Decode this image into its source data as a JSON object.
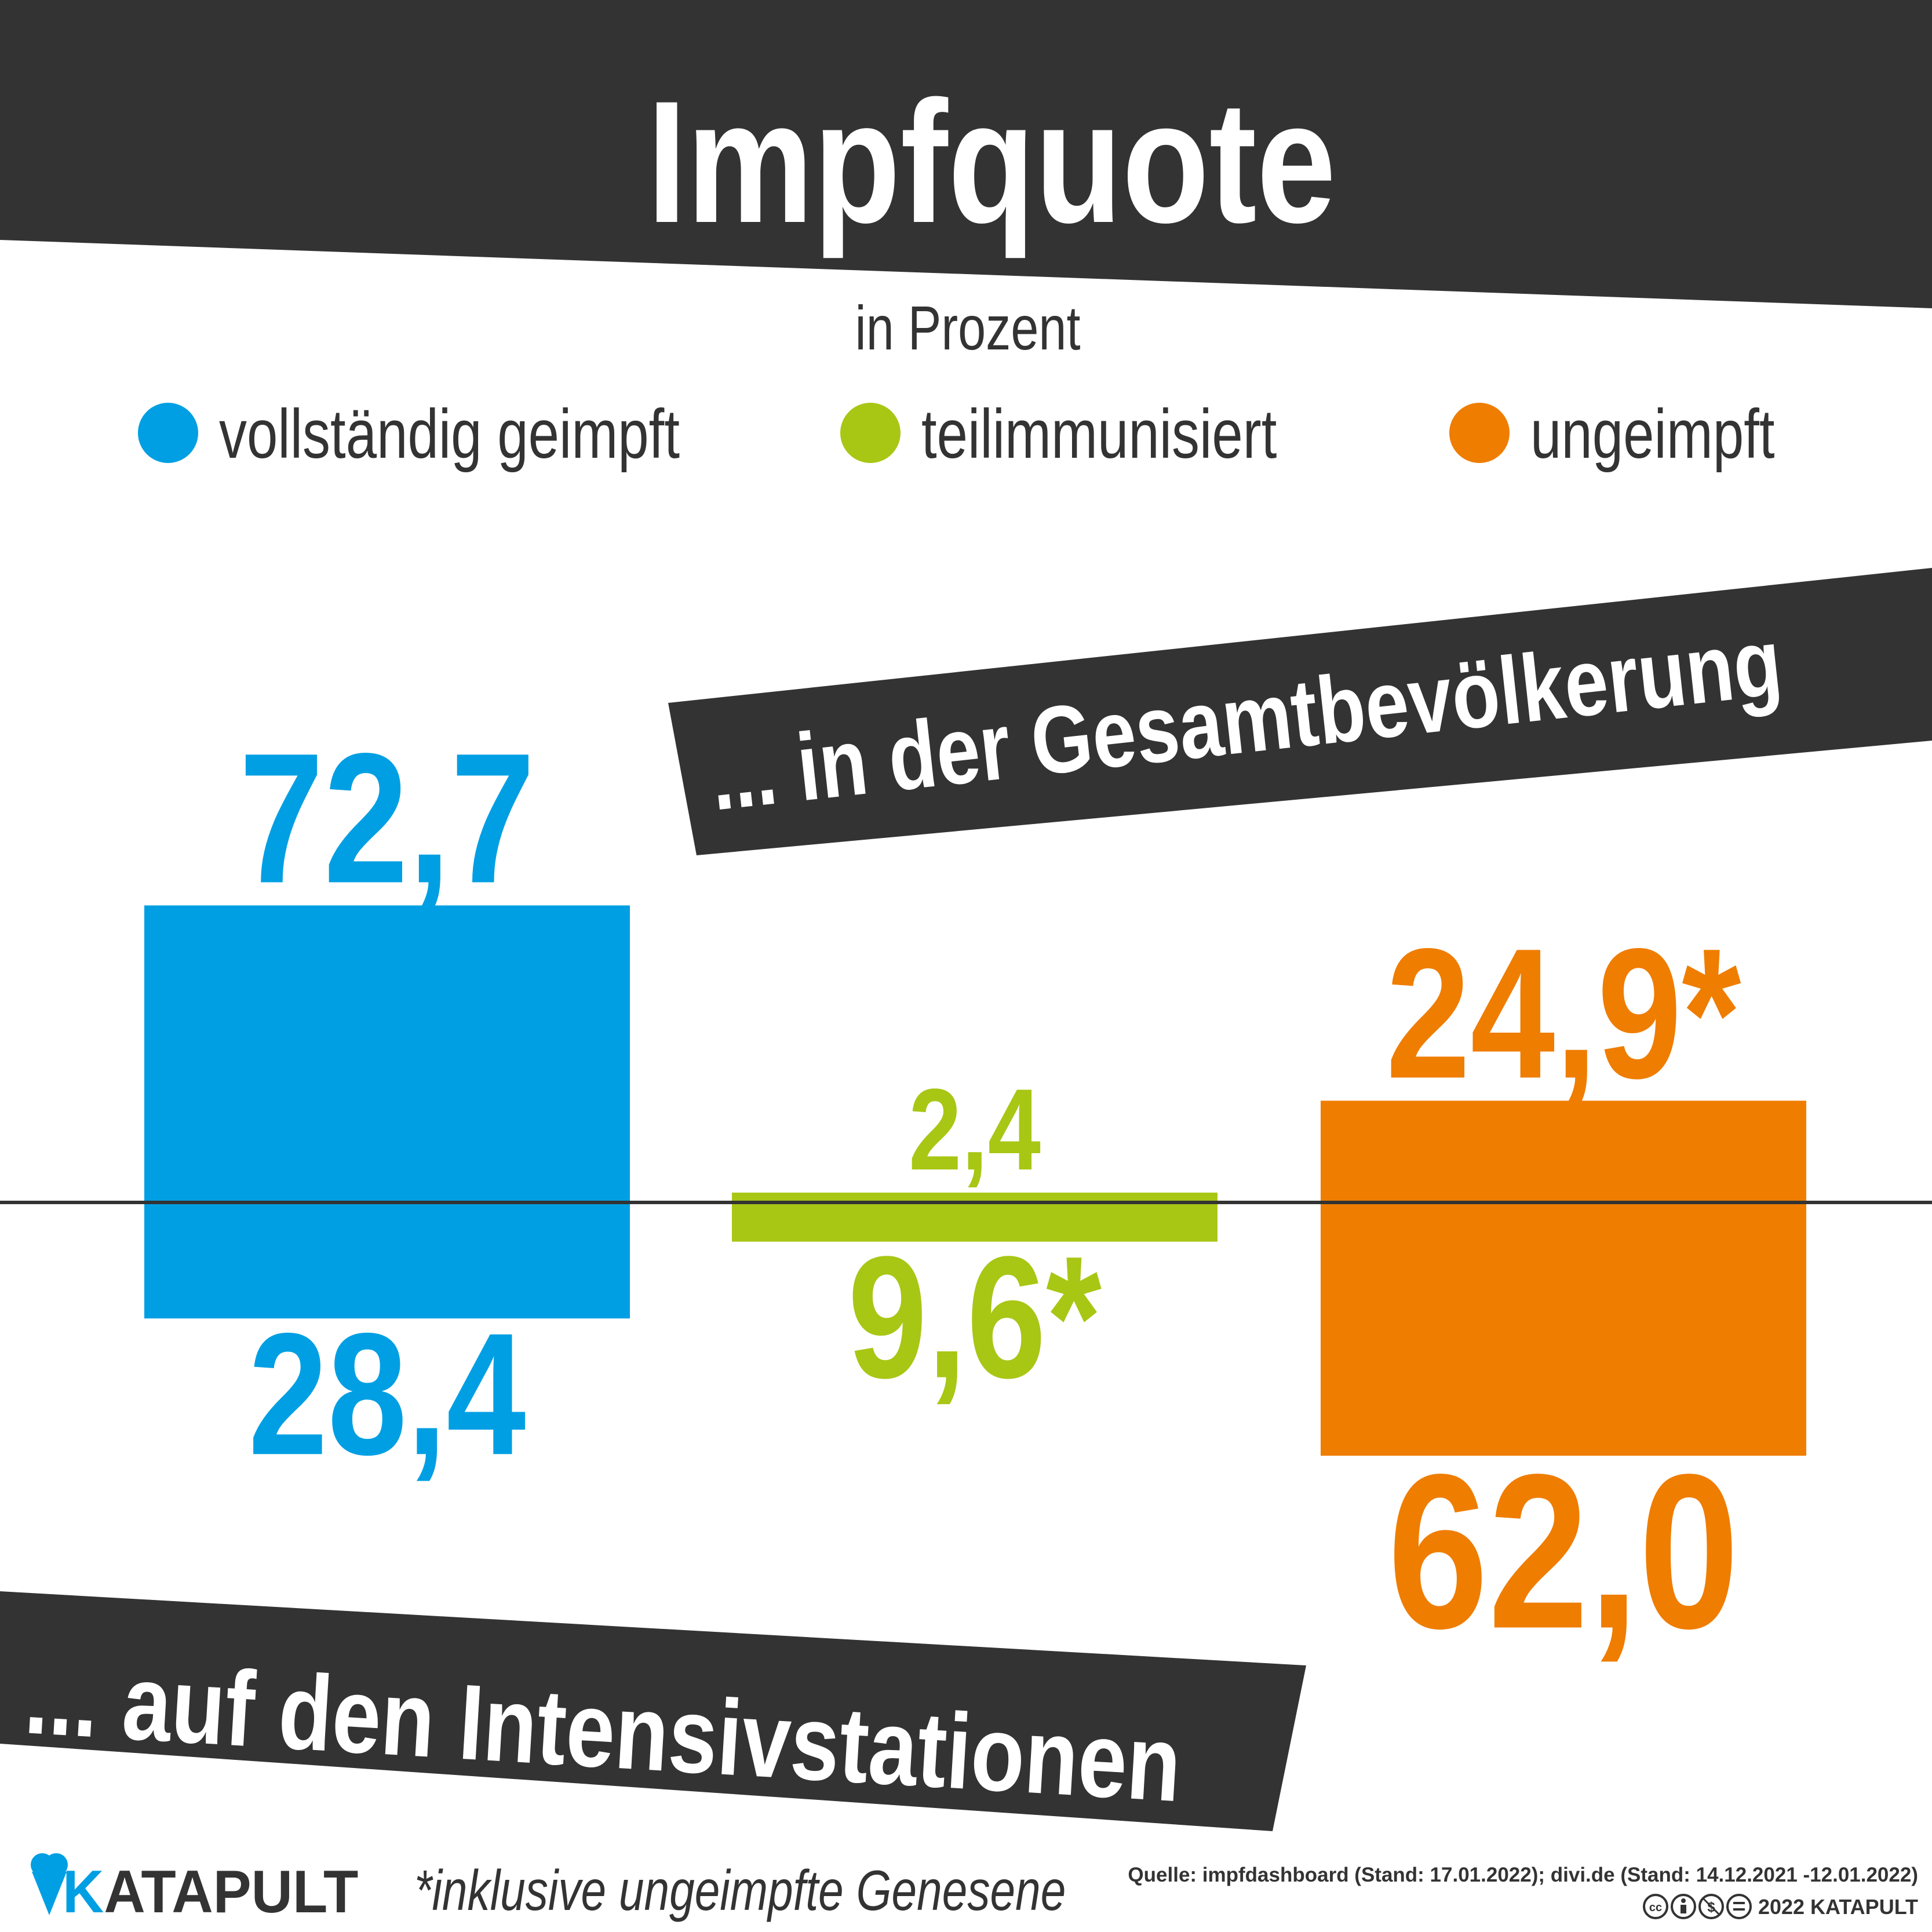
{
  "chart_data": {
    "type": "bar",
    "title": "Impfquote",
    "subtitle": "in Prozent",
    "categories": [
      "vollständig geimpft",
      "teilimmunisiert",
      "ungeimpft"
    ],
    "series": [
      {
        "name": "... in der Gesamtbevölkerung",
        "values": [
          72.7,
          2.4,
          24.9
        ],
        "labels": [
          "72,7",
          "2,4",
          "24,9*"
        ],
        "direction": "up"
      },
      {
        "name": "... auf den Intensivstationen",
        "values": [
          28.4,
          9.6,
          62.0
        ],
        "labels": [
          "28,4",
          "9,6*",
          "62,0"
        ],
        "direction": "down"
      }
    ],
    "colors": [
      "#009fe3",
      "#a8c614",
      "#ef7d00"
    ],
    "legend": "top",
    "ylim": [
      0,
      100
    ]
  },
  "colors": {
    "dark": "#333333",
    "white": "#ffffff",
    "axis": "#333333"
  },
  "footer": {
    "brand": "KATAPULT",
    "brand_k": "K",
    "brand_rest": "ATAPULT",
    "footnote": "*inklusive ungeimpfte Genesene",
    "source": "Quelle: impfdashboard (Stand: 17.01.2022); divi.de (Stand: 14.12.2021 -12.01.2022)",
    "copyright": "2022 KATAPULT",
    "license_icons": [
      "cc",
      "by",
      "nc",
      "nd"
    ]
  }
}
